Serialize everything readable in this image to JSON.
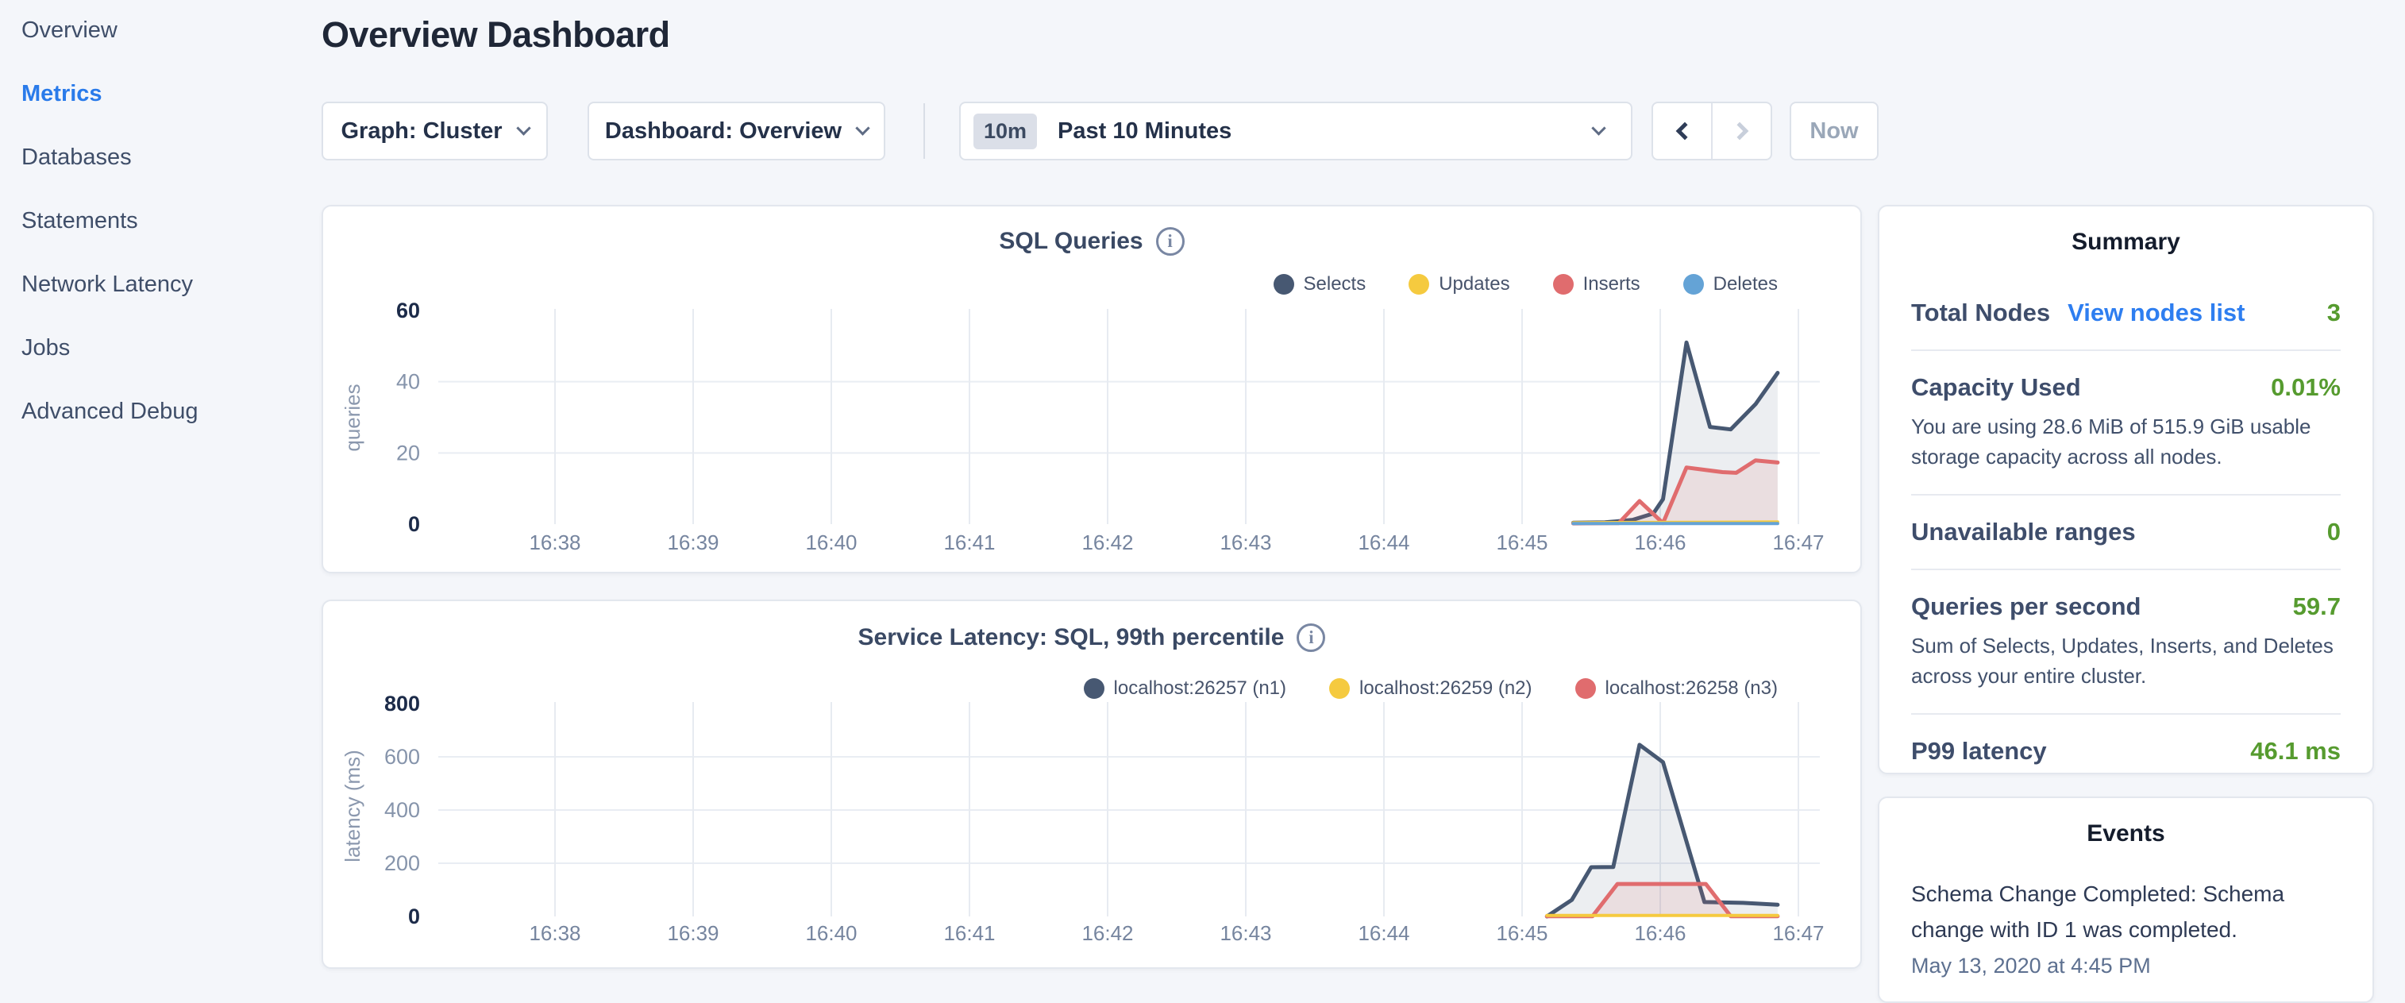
{
  "sidebar": {
    "items": [
      {
        "label": "Overview",
        "active": false
      },
      {
        "label": "Metrics",
        "active": true
      },
      {
        "label": "Databases",
        "active": false
      },
      {
        "label": "Statements",
        "active": false
      },
      {
        "label": "Network Latency",
        "active": false
      },
      {
        "label": "Jobs",
        "active": false
      },
      {
        "label": "Advanced Debug",
        "active": false
      }
    ]
  },
  "header": {
    "title": "Overview Dashboard"
  },
  "toolbar": {
    "graph_label": "Graph: Cluster",
    "dashboard_label": "Dashboard: Overview",
    "time_badge": "10m",
    "time_label": "Past 10 Minutes",
    "now_label": "Now"
  },
  "colors": {
    "accent_blue": "#2a7bea",
    "value_green": "#569b2f",
    "series_navy": "#475872",
    "series_yellow": "#f5ca3f",
    "series_red": "#e06c6e",
    "series_blue": "#64a3d6"
  },
  "chart_data": [
    {
      "type": "line",
      "title": "SQL Queries",
      "ylabel": "queries",
      "ylim": [
        0,
        60
      ],
      "yticks": [
        0,
        20,
        40,
        60
      ],
      "grid": true,
      "legend_position": "top-right",
      "x_ticks": [
        {
          "t": 1,
          "label": "16:38"
        },
        {
          "t": 2,
          "label": "16:39"
        },
        {
          "t": 3,
          "label": "16:40"
        },
        {
          "t": 4,
          "label": "16:41"
        },
        {
          "t": 5,
          "label": "16:42"
        },
        {
          "t": 6,
          "label": "16:43"
        },
        {
          "t": 7,
          "label": "16:44"
        },
        {
          "t": 8,
          "label": "16:45"
        },
        {
          "t": 9,
          "label": "16:46"
        },
        {
          "t": 10,
          "label": "16:47"
        }
      ],
      "series": [
        {
          "name": "Selects",
          "color": "#475872",
          "fill": "rgba(71,88,114,0.10)",
          "width": 5,
          "points": [
            [
              8.37,
              0.4
            ],
            [
              8.6,
              0.5
            ],
            [
              8.8,
              1.2
            ],
            [
              8.95,
              3
            ],
            [
              9.02,
              7
            ],
            [
              9.19,
              51
            ],
            [
              9.36,
              27.3
            ],
            [
              9.51,
              26.6
            ],
            [
              9.69,
              33.7
            ],
            [
              9.85,
              42.5
            ]
          ]
        },
        {
          "name": "Inserts",
          "color": "#e06c6e",
          "fill": "rgba(224,108,110,0.12)",
          "width": 5,
          "points": [
            [
              8.37,
              0.2
            ],
            [
              8.7,
              0.3
            ],
            [
              8.85,
              6.5
            ],
            [
              9.02,
              0.3
            ],
            [
              9.19,
              15.9
            ],
            [
              9.45,
              14.6
            ],
            [
              9.55,
              14.4
            ],
            [
              9.69,
              17.9
            ],
            [
              9.85,
              17.3
            ]
          ]
        },
        {
          "name": "Updates",
          "color": "#f5ca3f",
          "fill": null,
          "width": 4,
          "points": [
            [
              8.37,
              0.4
            ],
            [
              9.85,
              0.6
            ]
          ]
        },
        {
          "name": "Deletes",
          "color": "#64a3d6",
          "fill": null,
          "width": 4,
          "points": [
            [
              8.37,
              0.15
            ],
            [
              9.85,
              0.15
            ]
          ]
        }
      ],
      "legend_order": [
        "Selects",
        "Updates",
        "Inserts",
        "Deletes"
      ]
    },
    {
      "type": "line",
      "title": "Service Latency: SQL, 99th percentile",
      "ylabel": "latency (ms)",
      "ylim": [
        0,
        800
      ],
      "yticks": [
        0,
        200,
        400,
        600,
        800
      ],
      "grid": true,
      "legend_position": "top-right",
      "x_ticks": [
        {
          "t": 1,
          "label": "16:38"
        },
        {
          "t": 2,
          "label": "16:39"
        },
        {
          "t": 3,
          "label": "16:40"
        },
        {
          "t": 4,
          "label": "16:41"
        },
        {
          "t": 5,
          "label": "16:42"
        },
        {
          "t": 6,
          "label": "16:43"
        },
        {
          "t": 7,
          "label": "16:44"
        },
        {
          "t": 8,
          "label": "16:45"
        },
        {
          "t": 9,
          "label": "16:46"
        },
        {
          "t": 10,
          "label": "16:47"
        }
      ],
      "series": [
        {
          "name": "localhost:26257 (n1)",
          "color": "#475872",
          "fill": "rgba(71,88,114,0.10)",
          "width": 5,
          "points": [
            [
              8.18,
              0
            ],
            [
              8.31,
              45
            ],
            [
              8.36,
              62
            ],
            [
              8.5,
              185
            ],
            [
              8.66,
              186
            ],
            [
              8.85,
              645
            ],
            [
              9.02,
              580
            ],
            [
              9.32,
              54
            ],
            [
              9.6,
              51
            ],
            [
              9.85,
              44
            ]
          ]
        },
        {
          "name": "localhost:26258 (n3)",
          "color": "#e06c6e",
          "fill": "rgba(224,108,110,0.12)",
          "width": 5,
          "points": [
            [
              8.18,
              1
            ],
            [
              8.51,
              1
            ],
            [
              8.69,
              122
            ],
            [
              9.33,
              122
            ],
            [
              9.51,
              1
            ],
            [
              9.85,
              1
            ]
          ]
        },
        {
          "name": "localhost:26259 (n2)",
          "color": "#f5ca3f",
          "fill": null,
          "width": 4,
          "points": [
            [
              8.18,
              4
            ],
            [
              9.85,
              4
            ]
          ]
        }
      ],
      "legend_order": [
        "localhost:26257 (n1)",
        "localhost:26259 (n2)",
        "localhost:26258 (n3)"
      ]
    }
  ],
  "summary": {
    "title": "Summary",
    "total_nodes": {
      "label": "Total Nodes",
      "link": "View nodes list",
      "value": "3"
    },
    "capacity": {
      "label": "Capacity Used",
      "value": "0.01%",
      "desc": "You are using 28.6 MiB of 515.9 GiB usable storage capacity across all nodes."
    },
    "unavailable": {
      "label": "Unavailable ranges",
      "value": "0"
    },
    "qps": {
      "label": "Queries per second",
      "value": "59.7",
      "desc": "Sum of Selects, Updates, Inserts, and Deletes across your entire cluster."
    },
    "p99": {
      "label": "P99 latency",
      "value": "46.1 ms"
    }
  },
  "events": {
    "title": "Events",
    "items": [
      {
        "text": "Schema Change Completed: Schema change with ID 1 was completed.",
        "time": "May 13, 2020 at 4:45 PM"
      }
    ]
  }
}
